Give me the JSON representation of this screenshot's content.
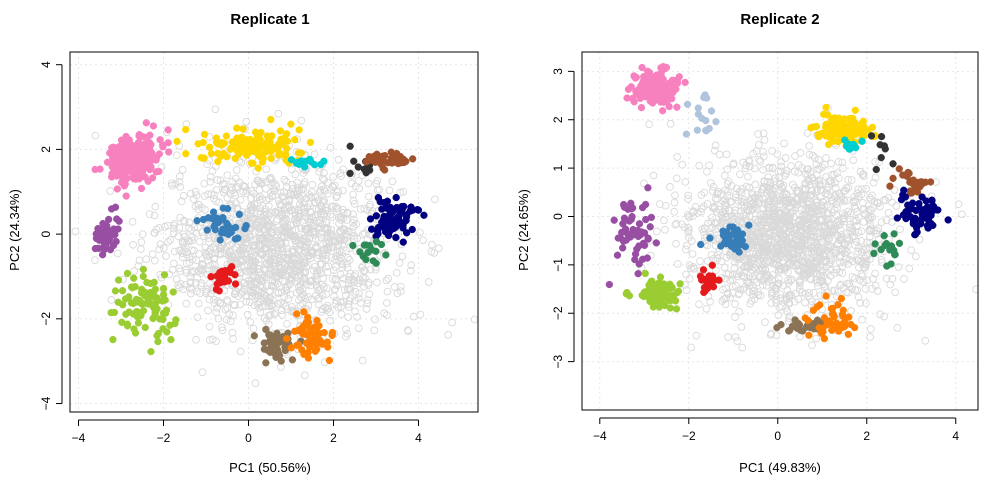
{
  "figure": {
    "background": "#ffffff"
  },
  "chart_data": [
    {
      "type": "scatter",
      "title": "Replicate 1",
      "xlabel": "PC1 (50.56%)",
      "ylabel": "PC2 (24.34%)",
      "xlim": [
        -4.2,
        5.4
      ],
      "ylim": [
        -4.2,
        4.3
      ],
      "xticks": [
        "−4",
        "−2",
        "0",
        "2",
        "4"
      ],
      "xtick_values": [
        -4,
        -2,
        0,
        2,
        4
      ],
      "yticks": [
        "−4",
        "−2",
        "0",
        "2",
        "4"
      ],
      "ytick_values": [
        -4,
        -2,
        0,
        2,
        4
      ],
      "grid": true,
      "background_points": {
        "color": "#d9d9d9",
        "style": "open-circle",
        "cloud": [
          0.7,
          -0.3,
          2.2,
          1.6
        ],
        "approx_count": 1500
      },
      "series": [
        {
          "color": "#f781bf",
          "center": [
            -2.7,
            1.75
          ],
          "spread": [
            0.28,
            0.28
          ],
          "count": 260
        },
        {
          "color": "#ffd700",
          "center": [
            0.05,
            2.1
          ],
          "spread": [
            0.55,
            0.22
          ],
          "count": 130
        },
        {
          "color": "#00ced1",
          "center": [
            1.5,
            1.7
          ],
          "spread": [
            0.25,
            0.06
          ],
          "count": 12
        },
        {
          "color": "#333333",
          "center": [
            2.7,
            1.6
          ],
          "spread": [
            0.15,
            0.15
          ],
          "count": 10
        },
        {
          "color": "#a0522d",
          "center": [
            3.2,
            1.75
          ],
          "spread": [
            0.22,
            0.1
          ],
          "count": 40
        },
        {
          "color": "#000080",
          "center": [
            3.4,
            0.3
          ],
          "spread": [
            0.3,
            0.28
          ],
          "count": 70
        },
        {
          "color": "#2e8b57",
          "center": [
            2.9,
            -0.4
          ],
          "spread": [
            0.2,
            0.18
          ],
          "count": 15
        },
        {
          "color": "#984ea3",
          "center": [
            -3.35,
            -0.05
          ],
          "spread": [
            0.14,
            0.22
          ],
          "count": 50
        },
        {
          "color": "#377eb8",
          "center": [
            -0.6,
            0.2
          ],
          "spread": [
            0.2,
            0.2
          ],
          "count": 40
        },
        {
          "color": "#e41a1c",
          "center": [
            -0.6,
            -1.0
          ],
          "spread": [
            0.14,
            0.14
          ],
          "count": 28
        },
        {
          "color": "#9acd32",
          "center": [
            -2.4,
            -1.7
          ],
          "spread": [
            0.35,
            0.38
          ],
          "count": 90
        },
        {
          "color": "#8b7355",
          "center": [
            0.7,
            -2.6
          ],
          "spread": [
            0.2,
            0.17
          ],
          "count": 45
        },
        {
          "color": "#ff7f00",
          "center": [
            1.55,
            -2.45
          ],
          "spread": [
            0.28,
            0.22
          ],
          "count": 55
        }
      ]
    },
    {
      "type": "scatter",
      "title": "Replicate 2",
      "xlabel": "PC1 (49.83%)",
      "ylabel": "PC2 (24.65%)",
      "xlim": [
        -4.4,
        4.5
      ],
      "ylim": [
        -4.0,
        3.4
      ],
      "xticks": [
        "−4",
        "−2",
        "0",
        "2",
        "4"
      ],
      "xtick_values": [
        -4,
        -2,
        0,
        2,
        4
      ],
      "yticks": [
        "−3",
        "−2",
        "−1",
        "0",
        "1",
        "2",
        "3"
      ],
      "ytick_values": [
        -3,
        -2,
        -1,
        0,
        1,
        2,
        3
      ],
      "grid": true,
      "background_points": {
        "color": "#d9d9d9",
        "style": "open-circle",
        "cloud": [
          0.2,
          -0.4,
          1.9,
          1.3
        ],
        "approx_count": 1500
      },
      "series": [
        {
          "color": "#f781bf",
          "center": [
            -2.75,
            2.65
          ],
          "spread": [
            0.22,
            0.18
          ],
          "count": 150
        },
        {
          "color": "#b0c4de",
          "center": [
            -1.6,
            2.1
          ],
          "spread": [
            0.2,
            0.25
          ],
          "count": 15
        },
        {
          "color": "#ffd700",
          "center": [
            1.45,
            1.8
          ],
          "spread": [
            0.3,
            0.15
          ],
          "count": 110
        },
        {
          "color": "#00ced1",
          "center": [
            1.6,
            1.45
          ],
          "spread": [
            0.15,
            0.07
          ],
          "count": 10
        },
        {
          "color": "#333333",
          "center": [
            2.3,
            1.3
          ],
          "spread": [
            0.15,
            0.2
          ],
          "count": 8
        },
        {
          "color": "#a0522d",
          "center": [
            3.05,
            0.7
          ],
          "spread": [
            0.2,
            0.12
          ],
          "count": 30
        },
        {
          "color": "#000080",
          "center": [
            3.2,
            0.05
          ],
          "spread": [
            0.22,
            0.22
          ],
          "count": 55
        },
        {
          "color": "#2e8b57",
          "center": [
            2.5,
            -0.65
          ],
          "spread": [
            0.22,
            0.18
          ],
          "count": 15
        },
        {
          "color": "#984ea3",
          "center": [
            -3.2,
            -0.25
          ],
          "spread": [
            0.22,
            0.32
          ],
          "count": 55
        },
        {
          "color": "#377eb8",
          "center": [
            -1.0,
            -0.45
          ],
          "spread": [
            0.22,
            0.11
          ],
          "count": 40
        },
        {
          "color": "#e41a1c",
          "center": [
            -1.6,
            -1.35
          ],
          "spread": [
            0.12,
            0.14
          ],
          "count": 22
        },
        {
          "color": "#9acd32",
          "center": [
            -2.65,
            -1.6
          ],
          "spread": [
            0.25,
            0.15
          ],
          "count": 90
        },
        {
          "color": "#8b7355",
          "center": [
            0.55,
            -2.25
          ],
          "spread": [
            0.25,
            0.08
          ],
          "count": 30
        },
        {
          "color": "#ff7f00",
          "center": [
            1.25,
            -2.15
          ],
          "spread": [
            0.25,
            0.17
          ],
          "count": 45
        }
      ]
    }
  ]
}
